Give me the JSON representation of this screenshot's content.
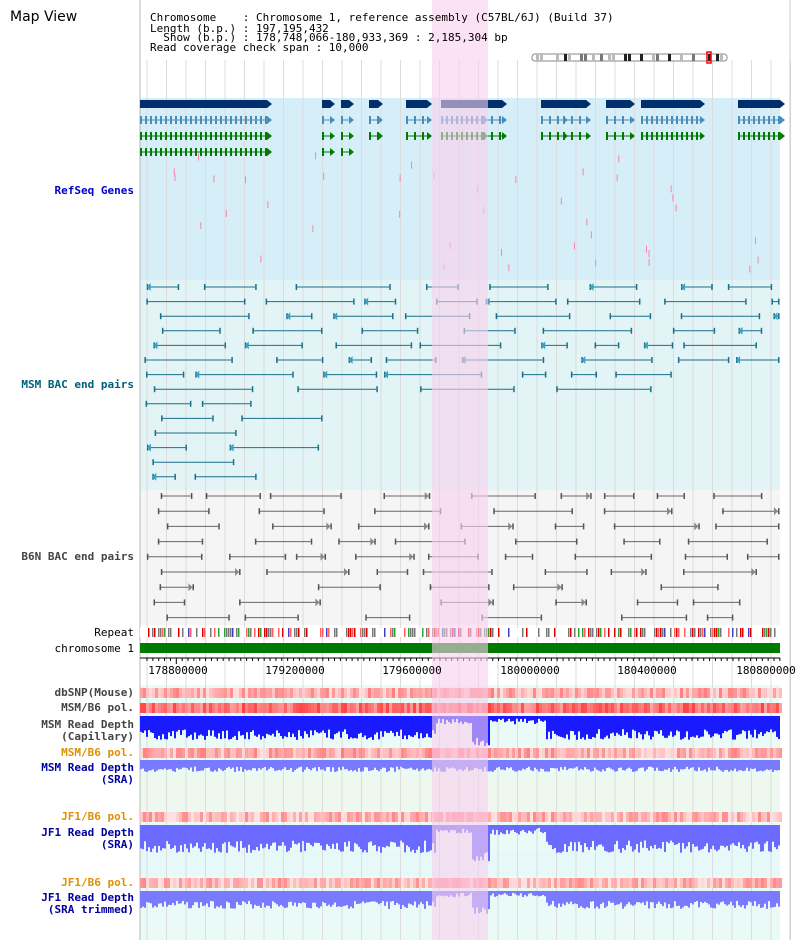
{
  "header": {
    "title": "Map View",
    "chromosome": "Chromosome    : Chromosome 1, reference assembly (C57BL/6J) (Build 37)",
    "length": "Length (b.p.) : 197,195,432",
    "show": "  Show (b.p.) : 178,748,066-180,933,369 : 2,185,304 bp",
    "coverage": "Read coverage check span : 10,000"
  },
  "tracks": {
    "refseq": "RefSeq Genes",
    "msm_bac": "MSM BAC end pairs",
    "b6n_bac": "B6N BAC end pairs",
    "repeat": "Repeat",
    "chromosome": "chromosome 1",
    "dbsnp": "dbSNP(Mouse)",
    "msm_b6_pol_1": "MSM/B6 pol.",
    "msm_read_depth_cap_1": "MSM Read Depth",
    "msm_read_depth_cap_2": "(Capillary)",
    "msm_b6_pol_2": "MSM/B6 pol.",
    "msm_read_depth_sra_1": "MSM Read Depth",
    "msm_read_depth_sra_2": "(SRA)",
    "jf1_b6_pol_1": "JF1/B6 pol.",
    "jf1_read_depth_sra_1": "JF1 Read Depth",
    "jf1_read_depth_sra_2": "(SRA)",
    "jf1_b6_pol_2": "JF1/B6 pol.",
    "jf1_read_depth_trim_1": "JF1 Read Depth",
    "jf1_read_depth_trim_2": "(SRA trimmed)"
  },
  "axis": {
    "ticks": [
      "178800000",
      "179200000",
      "179600000",
      "180000000",
      "180400000",
      "180800000"
    ]
  },
  "colors": {
    "highlight": "#f8d0ee",
    "refseq_bg": "#d6eef8",
    "msm_bg": "#e2f4f6",
    "gene_dark": "#002f6c",
    "gene_mid": "#4a8db8",
    "gene_green": "#007a00",
    "chromosome_bar": "#007a00",
    "depth_blue": "#1a1aff"
  }
}
